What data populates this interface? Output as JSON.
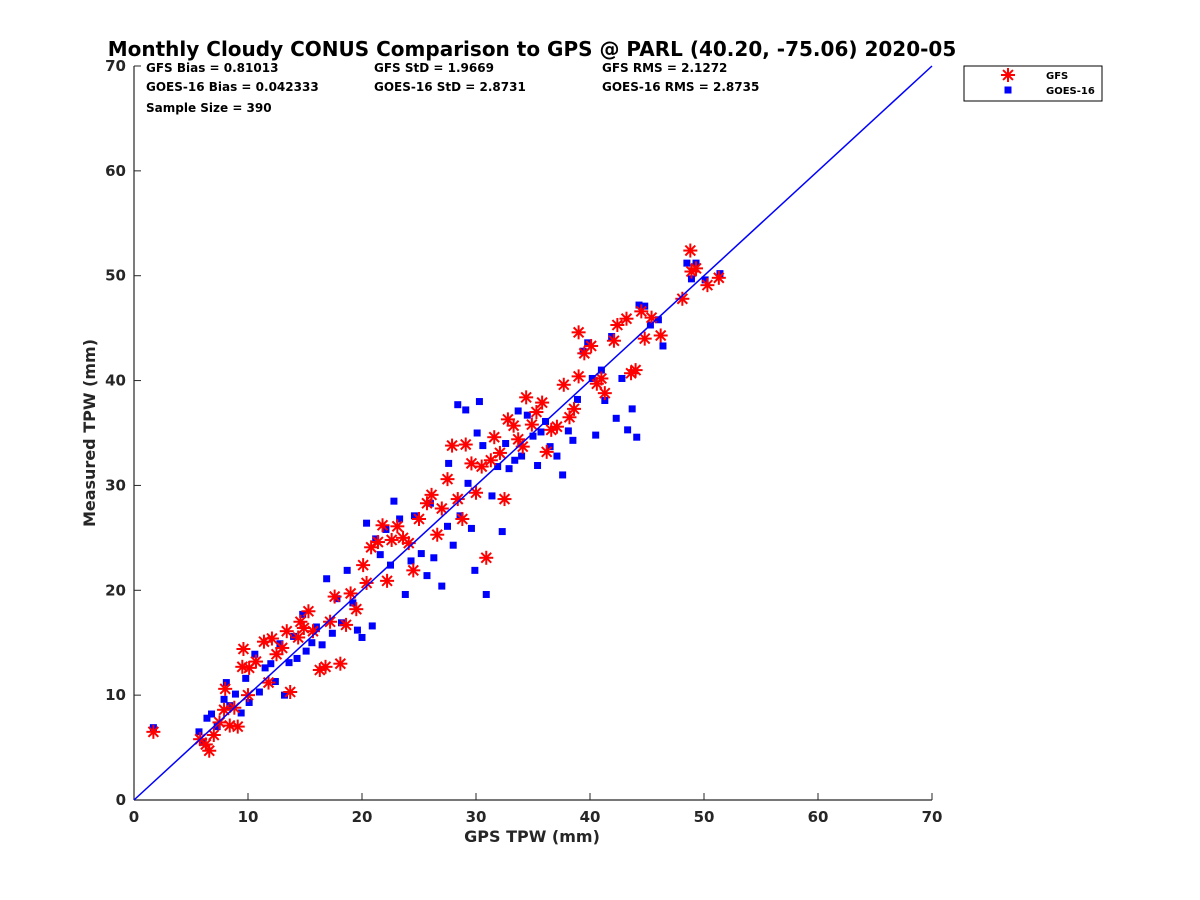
{
  "chart_data": {
    "type": "scatter",
    "title": "Monthly Cloudy CONUS Comparison to GPS @ PARL (40.20, -75.06) 2020-05",
    "xlabel": "GPS TPW (mm)",
    "ylabel": "Measured TPW (mm)",
    "xlim": [
      0,
      70
    ],
    "ylim": [
      0,
      70
    ],
    "xticks": [
      "0",
      "10",
      "20",
      "30",
      "40",
      "50",
      "60",
      "70"
    ],
    "yticks": [
      "0",
      "10",
      "20",
      "30",
      "40",
      "50",
      "60",
      "70"
    ],
    "grid": false,
    "legend_position": "top-right",
    "reference_line": {
      "x": [
        0,
        70
      ],
      "y": [
        0,
        70
      ],
      "color": "#0000ff"
    },
    "stats": [
      "GFS Bias = 0.81013",
      "GFS StD = 1.9669",
      "GFS RMS = 2.1272",
      "GOES-16 Bias = 0.042333",
      "GOES-16 StD = 2.8731",
      "GOES-16 RMS = 2.8735",
      "Sample Size = 390"
    ],
    "series": [
      {
        "name": "GFS",
        "marker": "asterisk",
        "color": "#ff0000",
        "points": [
          [
            1.7,
            6.5
          ],
          [
            5.8,
            5.8
          ],
          [
            6.3,
            5.3
          ],
          [
            6.6,
            4.7
          ],
          [
            7.0,
            6.2
          ],
          [
            7.5,
            7.4
          ],
          [
            7.9,
            8.6
          ],
          [
            8.0,
            10.6
          ],
          [
            8.4,
            7.1
          ],
          [
            8.8,
            8.8
          ],
          [
            9.1,
            7.0
          ],
          [
            9.5,
            12.7
          ],
          [
            9.6,
            14.4
          ],
          [
            10.0,
            10.0
          ],
          [
            10.1,
            12.6
          ],
          [
            10.7,
            13.2
          ],
          [
            11.4,
            15.1
          ],
          [
            11.8,
            11.2
          ],
          [
            12.1,
            15.4
          ],
          [
            12.5,
            13.9
          ],
          [
            13.0,
            14.5
          ],
          [
            13.4,
            16.1
          ],
          [
            13.7,
            10.3
          ],
          [
            14.4,
            15.5
          ],
          [
            14.6,
            17.0
          ],
          [
            14.9,
            16.4
          ],
          [
            15.3,
            18.0
          ],
          [
            15.7,
            16.1
          ],
          [
            16.3,
            12.4
          ],
          [
            16.8,
            12.7
          ],
          [
            17.2,
            17.0
          ],
          [
            17.6,
            19.4
          ],
          [
            18.1,
            13.0
          ],
          [
            18.6,
            16.7
          ],
          [
            19.0,
            19.7
          ],
          [
            19.5,
            18.2
          ],
          [
            20.1,
            22.4
          ],
          [
            20.4,
            20.7
          ],
          [
            20.8,
            24.1
          ],
          [
            21.4,
            24.6
          ],
          [
            21.8,
            26.2
          ],
          [
            22.2,
            20.9
          ],
          [
            22.6,
            24.8
          ],
          [
            23.1,
            26.1
          ],
          [
            23.6,
            25.0
          ],
          [
            24.1,
            24.5
          ],
          [
            24.5,
            21.9
          ],
          [
            25.0,
            26.8
          ],
          [
            25.7,
            28.3
          ],
          [
            26.1,
            29.1
          ],
          [
            26.6,
            25.3
          ],
          [
            27.0,
            27.8
          ],
          [
            27.5,
            30.6
          ],
          [
            27.9,
            33.8
          ],
          [
            28.4,
            28.7
          ],
          [
            28.8,
            26.8
          ],
          [
            29.1,
            33.9
          ],
          [
            29.6,
            32.1
          ],
          [
            30.0,
            29.3
          ],
          [
            30.5,
            31.8
          ],
          [
            30.9,
            23.1
          ],
          [
            31.3,
            32.4
          ],
          [
            31.6,
            34.6
          ],
          [
            32.1,
            33.1
          ],
          [
            32.5,
            28.7
          ],
          [
            32.8,
            36.3
          ],
          [
            33.3,
            35.7
          ],
          [
            33.7,
            34.4
          ],
          [
            34.1,
            33.7
          ],
          [
            34.4,
            38.4
          ],
          [
            34.9,
            35.8
          ],
          [
            35.3,
            37.0
          ],
          [
            35.8,
            37.9
          ],
          [
            36.2,
            33.2
          ],
          [
            36.6,
            35.3
          ],
          [
            37.1,
            35.6
          ],
          [
            37.7,
            39.6
          ],
          [
            38.2,
            36.5
          ],
          [
            38.6,
            37.3
          ],
          [
            39.0,
            40.4
          ],
          [
            39.0,
            44.6
          ],
          [
            39.5,
            42.6
          ],
          [
            40.1,
            43.3
          ],
          [
            40.6,
            39.7
          ],
          [
            41.0,
            40.2
          ],
          [
            41.3,
            38.8
          ],
          [
            42.1,
            43.8
          ],
          [
            42.4,
            45.3
          ],
          [
            43.2,
            45.9
          ],
          [
            43.6,
            40.7
          ],
          [
            44.0,
            41.0
          ],
          [
            44.5,
            46.6
          ],
          [
            44.8,
            44.0
          ],
          [
            45.4,
            46.0
          ],
          [
            46.2,
            44.3
          ],
          [
            48.1,
            47.8
          ],
          [
            48.8,
            52.4
          ],
          [
            48.9,
            50.4
          ],
          [
            49.3,
            50.7
          ],
          [
            50.3,
            49.1
          ],
          [
            51.3,
            49.8
          ]
        ]
      },
      {
        "name": "GOES-16",
        "marker": "square",
        "color": "#0000ff",
        "points": [
          [
            1.7,
            6.9
          ],
          [
            5.7,
            6.5
          ],
          [
            6.0,
            5.5
          ],
          [
            6.4,
            7.8
          ],
          [
            6.8,
            8.2
          ],
          [
            7.3,
            7.0
          ],
          [
            7.9,
            9.6
          ],
          [
            8.1,
            11.2
          ],
          [
            8.4,
            9.0
          ],
          [
            8.9,
            10.1
          ],
          [
            9.4,
            8.3
          ],
          [
            9.8,
            11.6
          ],
          [
            10.1,
            9.3
          ],
          [
            10.6,
            13.9
          ],
          [
            11.0,
            10.3
          ],
          [
            11.5,
            12.6
          ],
          [
            12.0,
            13.0
          ],
          [
            12.4,
            11.3
          ],
          [
            12.8,
            14.9
          ],
          [
            13.2,
            10.0
          ],
          [
            13.6,
            13.1
          ],
          [
            14.0,
            15.6
          ],
          [
            14.3,
            13.5
          ],
          [
            14.8,
            17.7
          ],
          [
            15.1,
            14.2
          ],
          [
            15.6,
            15.0
          ],
          [
            16.0,
            16.5
          ],
          [
            16.5,
            14.8
          ],
          [
            16.9,
            21.1
          ],
          [
            17.4,
            15.9
          ],
          [
            17.8,
            19.2
          ],
          [
            18.2,
            16.9
          ],
          [
            18.7,
            21.9
          ],
          [
            19.2,
            18.8
          ],
          [
            19.6,
            16.2
          ],
          [
            20.0,
            15.5
          ],
          [
            20.4,
            26.4
          ],
          [
            20.9,
            16.6
          ],
          [
            21.2,
            24.9
          ],
          [
            21.6,
            23.4
          ],
          [
            22.1,
            25.8
          ],
          [
            22.5,
            22.4
          ],
          [
            22.8,
            28.5
          ],
          [
            23.3,
            26.8
          ],
          [
            23.8,
            19.6
          ],
          [
            24.3,
            22.8
          ],
          [
            24.6,
            27.1
          ],
          [
            25.2,
            23.5
          ],
          [
            25.7,
            21.4
          ],
          [
            26.0,
            28.3
          ],
          [
            26.3,
            23.1
          ],
          [
            27.0,
            20.4
          ],
          [
            27.5,
            26.1
          ],
          [
            27.6,
            32.1
          ],
          [
            28.0,
            24.3
          ],
          [
            28.4,
            37.7
          ],
          [
            28.6,
            27.1
          ],
          [
            29.1,
            37.2
          ],
          [
            29.3,
            30.2
          ],
          [
            29.6,
            25.9
          ],
          [
            29.9,
            21.9
          ],
          [
            30.1,
            35.0
          ],
          [
            30.3,
            38.0
          ],
          [
            30.6,
            33.8
          ],
          [
            30.9,
            19.6
          ],
          [
            31.4,
            29.0
          ],
          [
            31.9,
            31.8
          ],
          [
            32.3,
            25.6
          ],
          [
            32.6,
            34.0
          ],
          [
            32.9,
            31.6
          ],
          [
            33.4,
            32.4
          ],
          [
            33.7,
            37.1
          ],
          [
            34.0,
            32.8
          ],
          [
            34.5,
            36.7
          ],
          [
            35.0,
            34.7
          ],
          [
            35.4,
            31.9
          ],
          [
            35.7,
            35.1
          ],
          [
            36.1,
            36.1
          ],
          [
            36.5,
            33.7
          ],
          [
            37.1,
            32.8
          ],
          [
            37.6,
            31.0
          ],
          [
            38.1,
            35.2
          ],
          [
            38.5,
            34.3
          ],
          [
            38.9,
            38.2
          ],
          [
            39.4,
            42.8
          ],
          [
            39.8,
            43.6
          ],
          [
            40.2,
            40.2
          ],
          [
            40.5,
            34.8
          ],
          [
            41.0,
            41.0
          ],
          [
            41.3,
            38.1
          ],
          [
            41.9,
            44.2
          ],
          [
            42.3,
            36.4
          ],
          [
            42.8,
            40.2
          ],
          [
            43.3,
            35.3
          ],
          [
            43.7,
            37.3
          ],
          [
            44.1,
            34.6
          ],
          [
            44.3,
            47.2
          ],
          [
            44.8,
            47.1
          ],
          [
            45.3,
            45.3
          ],
          [
            46.0,
            45.8
          ],
          [
            46.4,
            43.3
          ],
          [
            48.5,
            51.2
          ],
          [
            48.9,
            49.7
          ],
          [
            49.3,
            51.2
          ],
          [
            50.1,
            49.6
          ],
          [
            51.4,
            50.2
          ]
        ]
      }
    ]
  }
}
